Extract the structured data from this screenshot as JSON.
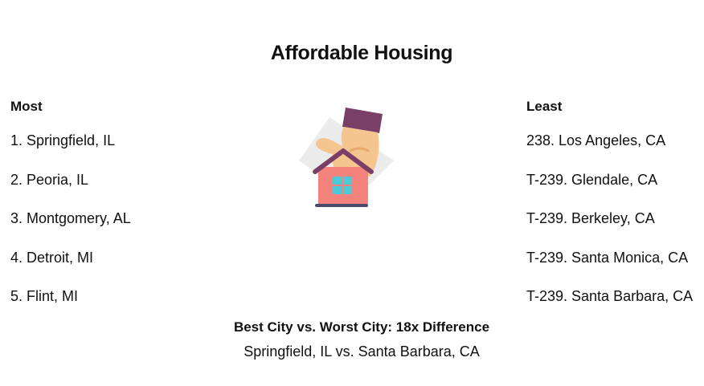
{
  "title": "Affordable Housing",
  "most": {
    "heading": "Most",
    "items": [
      "1. Springfield, IL",
      "2. Peoria, IL",
      "3. Montgomery, AL",
      "4. Detroit, MI",
      "5. Flint, MI"
    ]
  },
  "least": {
    "heading": "Least",
    "items": [
      "238. Los Angeles, CA",
      "T-239. Glendale, CA",
      "T-239. Berkeley, CA",
      "T-239. Santa Monica, CA",
      "T-239. Santa Barbara, CA"
    ]
  },
  "illustration": {
    "icon": "hand-holding-house-icon",
    "colors": {
      "house": "#f4837d",
      "roof": "#7a3f66",
      "window": "#4fc9d6",
      "hand": "#f5c58f",
      "sleeve": "#7a3f66",
      "backdrop": "#ececec",
      "base": "#4a4a6a"
    }
  },
  "summary": {
    "title": "Best City vs. Worst City: 18x Difference",
    "text": "Springfield, IL vs. Santa Barbara, CA"
  }
}
